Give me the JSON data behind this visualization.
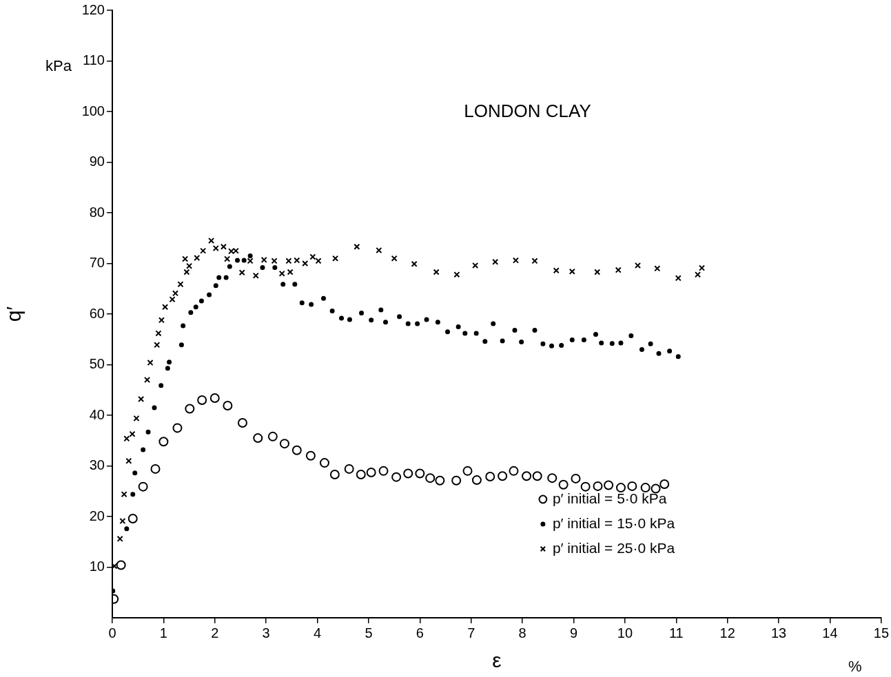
{
  "chart_data": {
    "type": "scatter",
    "title": "LONDON CLAY",
    "xlabel": "ε",
    "ylabel": "q′",
    "annotations": [
      "kPa",
      "%"
    ],
    "xlim": [
      0,
      15
    ],
    "xticks": [
      0,
      1,
      2,
      3,
      4,
      5,
      6,
      7,
      8,
      9,
      10,
      11,
      12,
      13,
      14,
      15
    ],
    "ylim": [
      0,
      120
    ],
    "yticks": [
      10,
      20,
      30,
      40,
      50,
      60,
      70,
      80,
      90,
      100,
      110,
      120
    ],
    "grid": false,
    "legend": "bottom right",
    "series": [
      {
        "name": "p′ initial = 5·0 kPa",
        "color": "#000000",
        "marker": "circle",
        "x": [
          0.03,
          0.17,
          0.4,
          0.6,
          0.84,
          1.0,
          1.27,
          1.51,
          1.75,
          2.0,
          2.25,
          2.54,
          2.84,
          3.13,
          3.36,
          3.6,
          3.87,
          4.14,
          4.34,
          4.62,
          4.85,
          5.05,
          5.29,
          5.54,
          5.77,
          6.0,
          6.2,
          6.39,
          6.71,
          6.93,
          7.11,
          7.37,
          7.61,
          7.83,
          8.08,
          8.29,
          8.58,
          8.8,
          9.04,
          9.23,
          9.47,
          9.68,
          9.92,
          10.14,
          10.4,
          10.6,
          10.77
        ],
        "values": [
          3.7,
          10.4,
          19.6,
          25.9,
          29.4,
          34.8,
          37.5,
          41.3,
          43,
          43.4,
          41.9,
          38.5,
          35.5,
          35.8,
          34.4,
          33.1,
          32,
          30.6,
          28.3,
          29.4,
          28.3,
          28.7,
          29,
          27.8,
          28.5,
          28.5,
          27.6,
          27.1,
          27.1,
          29,
          27.2,
          27.9,
          28,
          29,
          28,
          28,
          27.6,
          26.3,
          27.5,
          25.9,
          26,
          26.2,
          25.7,
          26,
          25.7,
          25.5,
          26.4
        ]
      },
      {
        "name": "p′ initial = 15·0 kPa",
        "color": "#000000",
        "marker": "circle",
        "x": [
          0.01,
          0.28,
          0.4,
          0.44,
          0.6,
          0.7,
          0.82,
          0.95,
          1.08,
          1.11,
          1.35,
          1.38,
          1.53,
          1.63,
          1.74,
          1.89,
          2.02,
          2.08,
          2.22,
          2.29,
          2.44,
          2.57,
          2.69,
          2.93,
          3.17,
          3.33,
          3.56,
          3.7,
          3.88,
          4.12,
          4.29,
          4.47,
          4.63,
          4.86,
          5.05,
          5.24,
          5.33,
          5.6,
          5.77,
          5.95,
          6.13,
          6.35,
          6.54,
          6.75,
          6.88,
          7.1,
          7.27,
          7.43,
          7.61,
          7.85,
          7.98,
          8.24,
          8.4,
          8.57,
          8.76,
          8.97,
          9.2,
          9.43,
          9.54,
          9.75,
          9.92,
          10.12,
          10.33,
          10.5,
          10.66,
          10.87,
          11.04
        ],
        "values": [
          5.3,
          17.6,
          24.4,
          28.6,
          33.2,
          36.7,
          41.5,
          45.9,
          49.3,
          50.5,
          53.9,
          57.7,
          60.3,
          61.4,
          62.6,
          63.8,
          65.6,
          67.2,
          67.2,
          69.4,
          70.6,
          70.6,
          71.5,
          69.2,
          69.2,
          65.9,
          65.9,
          62.2,
          61.9,
          63.1,
          60.6,
          59.2,
          58.9,
          60.2,
          58.8,
          60.8,
          58.4,
          59.5,
          58.1,
          58.1,
          58.9,
          58.4,
          56.5,
          57.5,
          56.2,
          56.2,
          54.6,
          58.1,
          54.7,
          56.8,
          54.5,
          56.8,
          54.1,
          53.7,
          53.8,
          54.9,
          54.9,
          56,
          54.3,
          54.2,
          54.3,
          55.7,
          53,
          54.1,
          52.2,
          52.7,
          51.6
        ]
      },
      {
        "name": "p′ initial = 25·0 kPa",
        "color": "#000000",
        "marker": "cross",
        "x": [
          0.04,
          0.15,
          0.2,
          0.23,
          0.32,
          0.28,
          0.39,
          0.47,
          0.56,
          0.68,
          0.74,
          0.87,
          0.9,
          0.96,
          1.03,
          1.17,
          1.23,
          1.33,
          1.45,
          1.5,
          1.42,
          1.65,
          1.77,
          1.93,
          2.02,
          2.17,
          2.24,
          2.32,
          2.41,
          2.53,
          2.69,
          2.8,
          2.96,
          3.16,
          3.31,
          3.44,
          3.47,
          3.6,
          3.76,
          3.91,
          4.02,
          4.35,
          4.77,
          5.2,
          5.5,
          5.89,
          6.32,
          6.72,
          7.08,
          7.47,
          7.87,
          8.24,
          8.66,
          8.97,
          9.46,
          9.87,
          10.25,
          10.63,
          11.04,
          11.42,
          11.5
        ],
        "values": [
          10.2,
          15.6,
          19.1,
          24.4,
          31,
          35.4,
          36.3,
          39.4,
          43.2,
          47,
          50.4,
          53.9,
          56.2,
          58.8,
          61.4,
          62.9,
          64.1,
          65.9,
          68.3,
          69.5,
          70.9,
          71.1,
          72.5,
          74.5,
          73,
          73.3,
          70.9,
          72.4,
          72.5,
          68.2,
          70.5,
          67.6,
          70.7,
          70.5,
          68,
          70.5,
          68.3,
          70.6,
          70,
          71.3,
          70.5,
          71,
          73.3,
          72.6,
          71,
          69.9,
          68.3,
          67.8,
          69.6,
          70.3,
          70.6,
          70.5,
          68.6,
          68.4,
          68.3,
          68.7,
          69.6,
          69,
          67.1,
          67.8,
          69.1
        ]
      }
    ]
  }
}
